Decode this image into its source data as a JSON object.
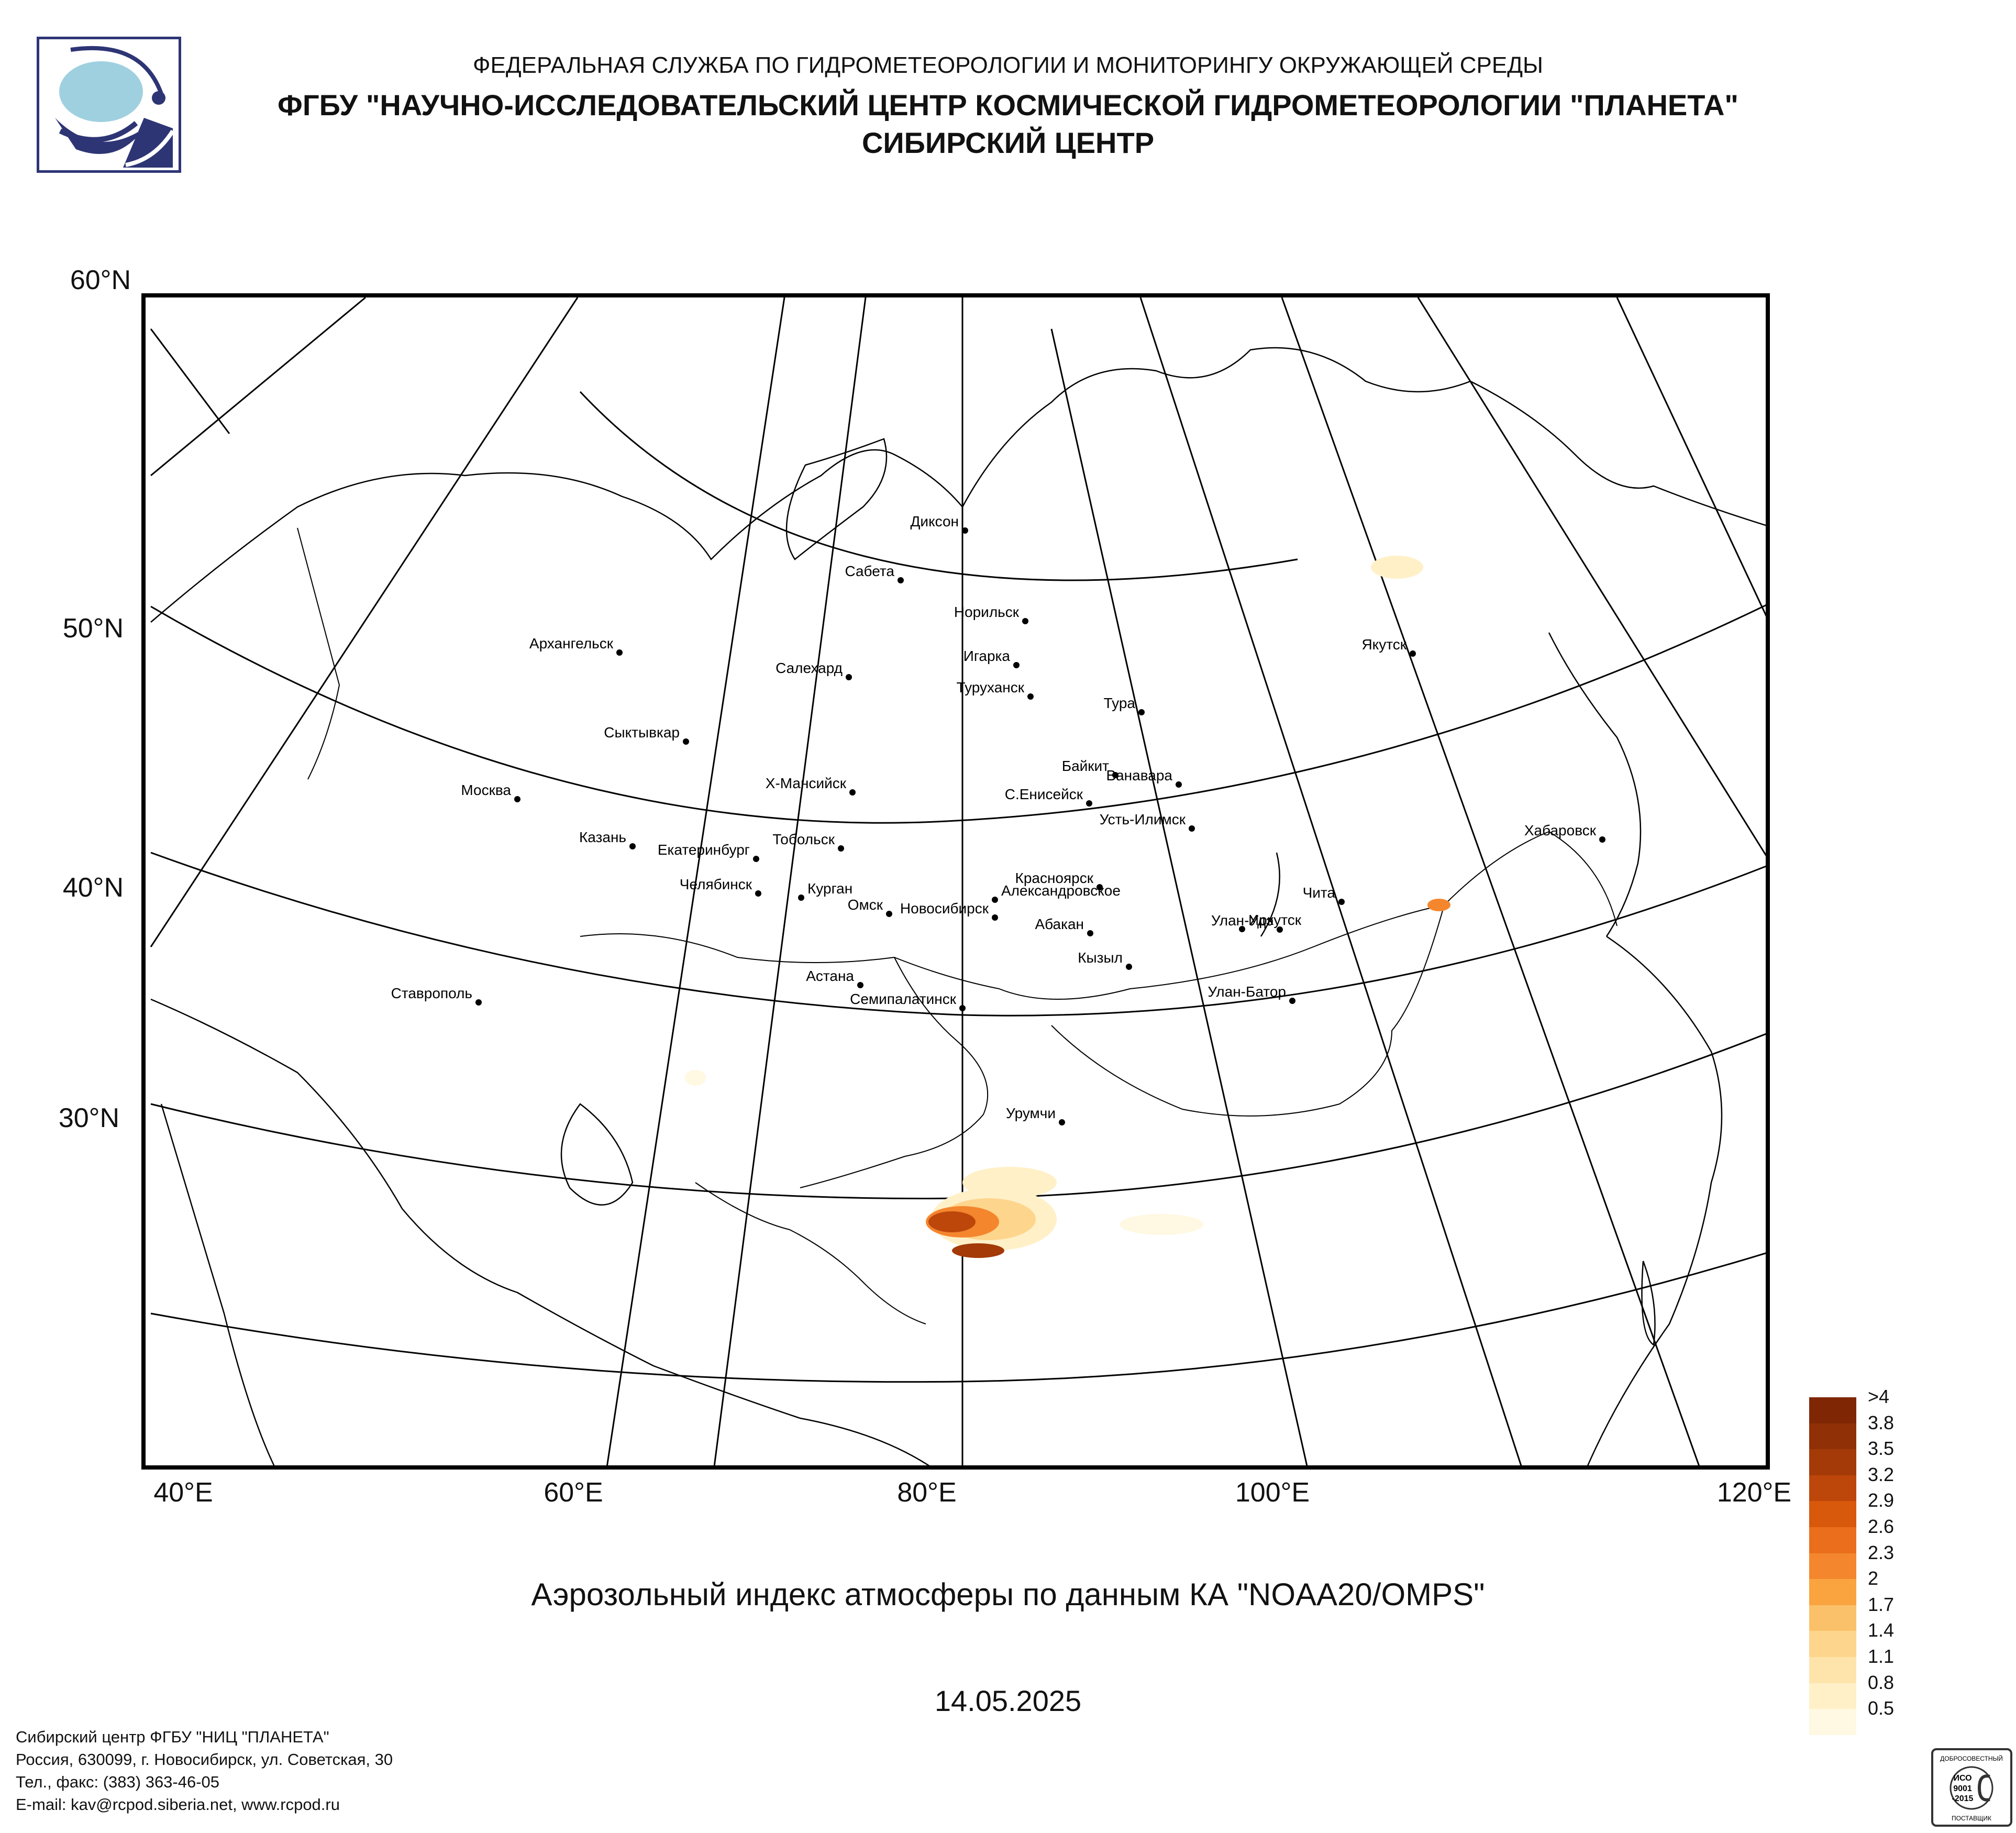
{
  "header": {
    "line1": "ФЕДЕРАЛЬНАЯ СЛУЖБА ПО ГИДРОМЕТЕОРОЛОГИИ И МОНИТОРИНГУ ОКРУЖАЮЩЕЙ СРЕДЫ",
    "line2": "ФГБУ \"НАУЧНО-ИССЛЕДОВАТЕЛЬСКИЙ ЦЕНТР КОСМИЧЕСКОЙ ГИДРОМЕТЕОРОЛОГИИ \"ПЛАНЕТА\"",
    "line3": "СИБИРСКИЙ ЦЕНТР"
  },
  "map": {
    "lat_labels": [
      "60°N",
      "50°N",
      "40°N",
      "30°N"
    ],
    "lon_labels": [
      "40°E",
      "60°E",
      "80°E",
      "100°E",
      "120°E"
    ],
    "cities": [
      {
        "name": "Диксон"
      },
      {
        "name": "Сабета"
      },
      {
        "name": "Норильск"
      },
      {
        "name": "Игарка"
      },
      {
        "name": "Салехард"
      },
      {
        "name": "Туруханск"
      },
      {
        "name": "Тура"
      },
      {
        "name": "Якутск"
      },
      {
        "name": "Архангельск"
      },
      {
        "name": "Сыктывкар"
      },
      {
        "name": "Байкит"
      },
      {
        "name": "Ванавара"
      },
      {
        "name": "Х-Мансийск"
      },
      {
        "name": "С.Енисейск"
      },
      {
        "name": "Москва"
      },
      {
        "name": "Усть-Илимск"
      },
      {
        "name": "Хабаровск"
      },
      {
        "name": "Казань"
      },
      {
        "name": "Тобольск"
      },
      {
        "name": "Екатеринбург"
      },
      {
        "name": "Красноярск"
      },
      {
        "name": "Челябинск"
      },
      {
        "name": "Чита"
      },
      {
        "name": "Александровское"
      },
      {
        "name": "Курган"
      },
      {
        "name": "Омск"
      },
      {
        "name": "Улан-Удэ"
      },
      {
        "name": "Новосибирск"
      },
      {
        "name": "Абакан"
      },
      {
        "name": "Иркутск"
      },
      {
        "name": "Кызыл"
      },
      {
        "name": "Астана"
      },
      {
        "name": "Ставрополь"
      },
      {
        "name": "Семипалатинск"
      },
      {
        "name": "Улан-Батор"
      },
      {
        "name": "Урумчи"
      }
    ]
  },
  "legend": {
    "items": [
      {
        "label": ">4",
        "color": "#7f2704"
      },
      {
        "label": "3.8",
        "color": "#8f3006"
      },
      {
        "label": "3.5",
        "color": "#a33a08"
      },
      {
        "label": "3.2",
        "color": "#bd460a"
      },
      {
        "label": "2.9",
        "color": "#d8580c"
      },
      {
        "label": "2.6",
        "color": "#ea6e1b"
      },
      {
        "label": "2.3",
        "color": "#f4862e"
      },
      {
        "label": "2",
        "color": "#f9a43f"
      },
      {
        "label": "1.7",
        "color": "#fbc16a"
      },
      {
        "label": "1.4",
        "color": "#fdd58c"
      },
      {
        "label": "1.1",
        "color": "#fee4ab"
      },
      {
        "label": "0.8",
        "color": "#fff0c8"
      },
      {
        "label": "0.5",
        "color": "#fff8e2"
      }
    ]
  },
  "title": "Аэрозольный индекс атмосферы по данным КА \"NOAA20/OMPS\"",
  "date": "14.05.2025",
  "footer": {
    "line1": "Сибирский центр ФГБУ \"НИЦ \"ПЛАНЕТА\"",
    "line2": "Россия, 630099, г. Новосибирск, ул. Советская, 30",
    "line3": "Тел., факс: (383) 363-46-05",
    "line4": "E-mail: kav@rcpod.siberia.net, www.rcpod.ru"
  },
  "badge": {
    "line1": "ДОБРОСОВЕСТНЫЙ",
    "line2": "ИСО",
    "line3": "9001",
    "line4": "-2015",
    "line5": "ПОСТАВЩИК"
  }
}
